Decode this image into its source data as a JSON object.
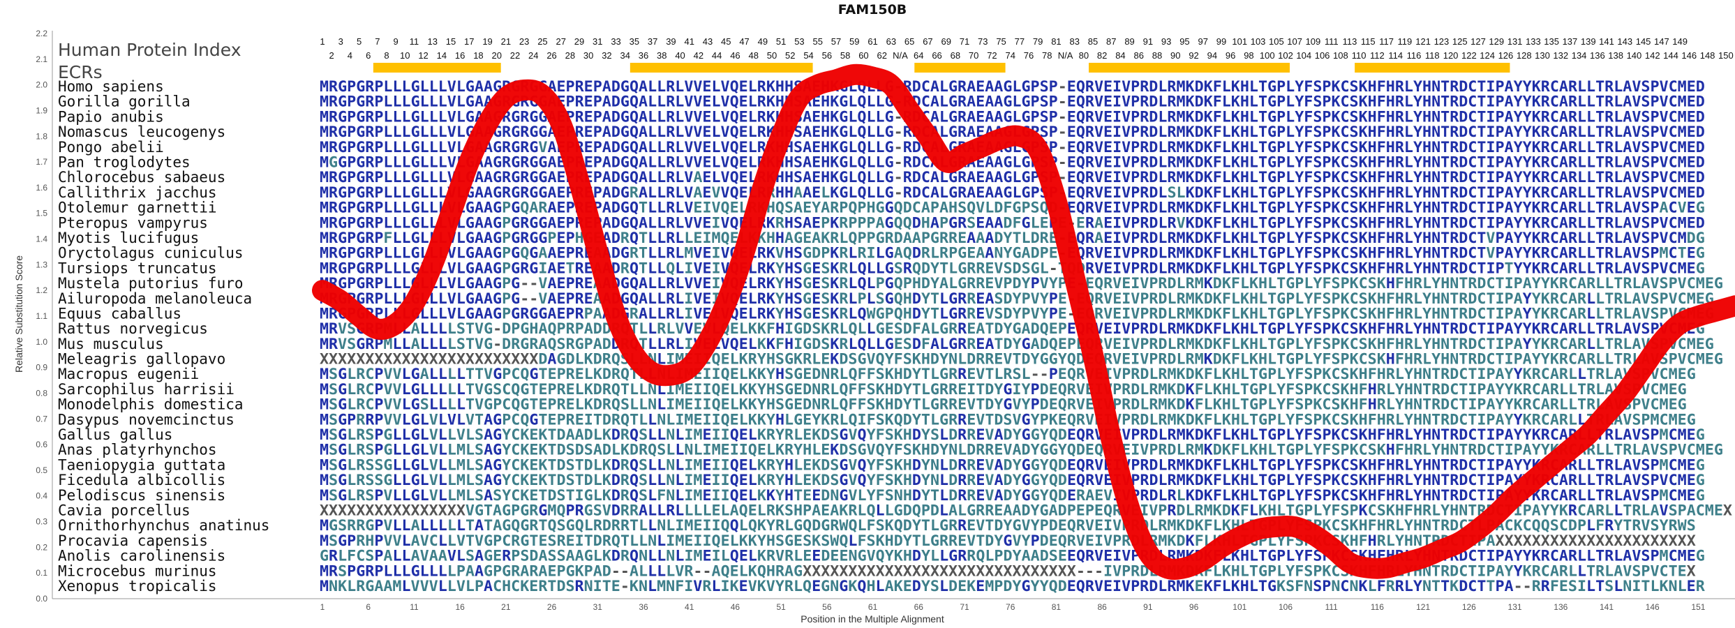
{
  "chart_data": {
    "type": "line",
    "title": "FAM150B",
    "header_label": "Human Protein Index",
    "ecr_label": "ECRs",
    "xlabel": "Position in the Multiple Alignment",
    "ylabel": "Relative Substitution Score",
    "xlim": [
      1,
      155
    ],
    "ylim": [
      0,
      2.2
    ],
    "yticks": [
      "0.0",
      "0.1",
      "0.2",
      "0.3",
      "0.4",
      "0.5",
      "0.6",
      "0.7",
      "0.8",
      "0.9",
      "1.0",
      "1.1",
      "1.2",
      "1.3",
      "1.4",
      "1.5",
      "1.6",
      "1.7",
      "1.8",
      "1.9",
      "2.0",
      "2.1",
      "2.2"
    ],
    "xticks": [
      "1",
      "6",
      "11",
      "16",
      "21",
      "26",
      "31",
      "36",
      "41",
      "46",
      "51",
      "56",
      "61",
      "66",
      "71",
      "76",
      "81",
      "86",
      "91",
      "96",
      "101",
      "106",
      "111",
      "116",
      "121",
      "126",
      "131",
      "136",
      "141",
      "146",
      "151"
    ],
    "protein_index_odd": [
      "1",
      "3",
      "5",
      "7",
      "9",
      "11",
      "13",
      "15",
      "17",
      "19",
      "21",
      "23",
      "25",
      "27",
      "29",
      "31",
      "33",
      "35",
      "37",
      "39",
      "41",
      "43",
      "45",
      "47",
      "49",
      "51",
      "53",
      "55",
      "57",
      "59",
      "61",
      "63",
      "65",
      "67",
      "69",
      "71",
      "73",
      "75",
      "77",
      "79",
      "81",
      "83",
      "85",
      "87",
      "89",
      "91",
      "93",
      "95",
      "97",
      "99",
      "101",
      "103",
      "105",
      "107",
      "109",
      "111",
      "113",
      "115",
      "117",
      "119",
      "121",
      "123",
      "125",
      "127",
      "129",
      "131",
      "133",
      "135",
      "137",
      "139",
      "141",
      "143",
      "145",
      "147",
      "149"
    ],
    "protein_index_even": [
      "2",
      "4",
      "6",
      "8",
      "10",
      "12",
      "14",
      "16",
      "18",
      "20",
      "22",
      "24",
      "26",
      "28",
      "30",
      "32",
      "34",
      "36",
      "38",
      "40",
      "42",
      "44",
      "46",
      "48",
      "50",
      "52",
      "54",
      "56",
      "58",
      "60",
      "62",
      "N/A",
      "64",
      "66",
      "68",
      "70",
      "72",
      "74",
      "76",
      "78",
      "N/A",
      "80",
      "82",
      "84",
      "86",
      "88",
      "90",
      "92",
      "94",
      "96",
      "98",
      "100",
      "102",
      "104",
      "106",
      "108",
      "110",
      "112",
      "114",
      "116",
      "118",
      "120",
      "122",
      "124",
      "126",
      "128",
      "130",
      "132",
      "134",
      "136",
      "138",
      "140",
      "142",
      "144",
      "146",
      "148",
      "150"
    ],
    "ecr_regions": [
      [
        7,
        20
      ],
      [
        35,
        54
      ],
      [
        66,
        75
      ],
      [
        85,
        106
      ],
      [
        114,
        130
      ]
    ],
    "ecr_color": "#FFC000",
    "line_color": "#EE0000",
    "series": [
      {
        "x": [
          1,
          3,
          5,
          7,
          9,
          11,
          13,
          15,
          17,
          19,
          21,
          23,
          25,
          27,
          29,
          31,
          33,
          35,
          37,
          39,
          41,
          43,
          45,
          47,
          49,
          51,
          53,
          55,
          57,
          59,
          61,
          63,
          65,
          67,
          69,
          71,
          73,
          75,
          77,
          79,
          81,
          83,
          85,
          87,
          89,
          91,
          93,
          95,
          97,
          99,
          101,
          103,
          105,
          107,
          109,
          111,
          113,
          115,
          117,
          119,
          121,
          123,
          125,
          127,
          129,
          131,
          133,
          135,
          137,
          139,
          141,
          143,
          145,
          147,
          149,
          151,
          153,
          155
        ],
        "y": [
          1.2,
          1.16,
          1.1,
          1.05,
          1.07,
          1.15,
          1.3,
          1.5,
          1.7,
          1.85,
          1.95,
          1.98,
          1.96,
          1.85,
          1.62,
          1.35,
          1.1,
          0.95,
          0.88,
          0.87,
          0.9,
          1.0,
          1.15,
          1.35,
          1.6,
          1.8,
          1.95,
          2.0,
          2.02,
          2.04,
          2.03,
          2.0,
          1.9,
          1.8,
          1.7,
          1.73,
          1.76,
          1.79,
          1.8,
          1.75,
          1.55,
          1.25,
          0.95,
          0.62,
          0.35,
          0.18,
          0.12,
          0.12,
          0.15,
          0.2,
          0.24,
          0.27,
          0.28,
          0.28,
          0.25,
          0.2,
          0.14,
          0.12,
          0.12,
          0.14,
          0.16,
          0.19,
          0.22,
          0.27,
          0.33,
          0.4,
          0.46,
          0.52,
          0.58,
          0.64,
          0.72,
          0.8,
          0.9,
          1.0,
          1.07,
          1.1,
          1.12,
          1.14
        ]
      }
    ],
    "grid": false,
    "sequence_alignment": [
      {
        "species": "Homo sapiens",
        "seq": "MRGPGRPLLLGLLLVLGAAGRGRGGAEPREPADGQALLRLVVELVQELRKHHSAEHKGLQLLG-RDCALGRAEAAGLGPSP-EQRVEIVPRDLRMKDKFLKHLTGPLYFSPKCSKHFHRLYHNTRDCTIPAYYKRCARLLTRLAVSPVCMED"
      },
      {
        "species": "Gorilla gorilla",
        "seq": "MRGPGRPLLLGLLLVLGAAGRGRGGAEPREPADGQALLRLVVELVQELRKHHSAEHKGLQLLG-RDCALGRAEAAGLGPSP-EQRVEIVPRDLRMKDKFLKHLTGPLYFSPKCSKHFHRLYHNTRDCTIPAYYKRCARLLTRLAVSPVCMED"
      },
      {
        "species": "Papio anubis",
        "seq": "MRGPGRPLLLGLLLVLGAAGRGRGGAEPREPADGQALLRLVVELVQELRKHHSAEHKGLQLLG-RDCALGRAEAAGLGPSP-EQRVEIVPRDLRMKDKFLKHLTGPLYFSPKCSKHFHRLYHNTRDCTIPAYYKRCARLLTRLAVSPVCMED"
      },
      {
        "species": "Nomascus leucogenys",
        "seq": "MRGPGRPLLLGLLLVLGAAGRGRGGAEPREPADGQALLRLVVELVQELRKHHSAEHKGLQLLG-RDCALGRAEAAGLGPSP-EQRVEIVPRDLRMKDKFLKHLTGPLYFSPKCSKHFHRLYHNTRDCTIPAYYKRCARLLTRLAVSPVCMED"
      },
      {
        "species": "Pongo abelii",
        "seq": "MRGPGRPLLLGLLLVLGAAGRGRGVAEPREPADGQALLRLVVELVQELRKHHSAEHKGLQLLG-RDCALGRAEAAGLGPSP-EQRVEIVPRDLRMKDKFLKHLTGPLYFSPKCSKHFHRLYHNTRDCTIPAYYKRCARLLTRLAVSPVCMED"
      },
      {
        "species": "Pan troglodytes",
        "seq": "MGGPGRPLLLGLLLVLGAAGRGRGGAEPREPADGQALLRLVVELVQELRKHHSAEHKGLQLLG-RDCALGRAEAAGLGPSP-EQRVEIVPRDLRMKDKFLKHLTGPLYFSPKCSKHFHRLYHNTRDCTIPAYYKRCARLLTRLAVSPVCMED"
      },
      {
        "species": "Chlorocebus sabaeus",
        "seq": "MRGPGRPLLLGLLLVLGAAGRGRGGAEPREPADGQALLRLVAELVQELRKHHSAEHKGLQLLG-RDCALGRAEAAGLGPSP-EQRVEIVPRDLRMKDKFLKHLTGPLYFSPKCSKHFHRLYHNTRDCTIPAYYKRCARLLTRLAVSPVCMED"
      },
      {
        "species": "Callithrix jacchus",
        "seq": "MRGPGRPLLLGLLLVLGAAGRGRGGAEPREPADGRALLRLVAEVVQELRRHHAAELKGLQLLG-RDCALGRAEAAGLGPSP-EQRVEIVPRDLSLKDKFLKHLTGPLYFSPKCSKHFHRLYHNTRDCTIPAYYKRCARLLTRLAVSPVCMED"
      },
      {
        "species": "Otolemur garnettii",
        "seq": "MRGPGRPLLLGLLLVLGAAGPGQARAEPREPADGQTLLRLVEIVQELRKHQSAEYARPQPHGGQDCAPAHSQVLDFGPSQD-EQRVEIVPRDLRMKDKFLKHLTGPLYFSPKCSKHFHRLYHNTRDCTIPAYYKRCARLLTRLAVSPACVEG"
      },
      {
        "species": "Pteropus vampyrus",
        "seq": "MRGPGRPLLLGLLLVLGAAGPGRGGAEPREPADGQALLRLVVEIVQELRKRHSAEPKRPPPAGQQDHAPGRSEAADFGLEPE-ERAEIVPRDLRVKDKFLKHLTGPLYFSPKCSKHFHRLYHNTRDCTIPAYYKRCARLLTRLAVSPVCMED"
      },
      {
        "species": "Myotis lucifugus",
        "seq": "MRGPGRPFLLGLLLVLGAAGPGRGGPEPHGEADRQTLLRLLEIMQELKKHHAGEAKRLQPPGRDAAPGRREAAADYTLDRE-EQRAEIVPRDLRMKDKFLKHLTGPLYFSPKCSKHFHRLYHNTRDCTVPAYYKRCARLLTRLAVSPVCMDG"
      },
      {
        "species": "Oryctolagus cuniculus",
        "seq": "MRGPGRPLLLGLLLVLGAAGPGQGAAEPREAADGRTLLRLMVEIVQELRKVHSGDPKRLRILGAQDRLRPGEAANYGADPE-EQRVEIVPRDLRMKDKFLKHLTGPLYFSPKCSKHFHRLYHNTRDCTVPAYYKRCARLLTRLAVSPMCTEG"
      },
      {
        "species": "Tursiops truncatus",
        "seq": "MRGPGRPLLLGLLLVLGAAGPGRGIAETREAADRQTLLQLIVEIVQELRKYHSGESKRLQLLGSRQDYTLGRREVSDSGL-TQDRVEIVPRDLRMKDKFLKHLTGPLYFSPKCSKHFHRLYHNTRDCTIPTYYKRCARLLTRLAVSPVCMEG"
      },
      {
        "species": "Mustela putorius furo",
        "seq": "MRGPGRPLLLGLLLVLGAAGPG--VAEPREAADGQALLRLVVEIVQELRKYHSGESKRLQLPGQPHDYALGRREVPDYPVYPE-EQRVEIVPRDLRMKDKFLKHLTGPLYFSPKCSKHFHRLYHNTRDCTIPAYYKRCARLLTRLAVSPVCMEG"
      },
      {
        "species": "Ailuropoda melanoleuca",
        "seq": "MRGPGRPLLLGLLLVLGAAGPG--VAEPREAADGQALLRLIVEIVQELRKYHSGESKRLPLSGQHDYTLGRREASDYPVYPE-EQRVEIVPRDLRMKDKFLKHLTGPLYFSPKCSKHFHRLYHNTRDCTIPAYYKRCARLLTRLAVSPVCMEG"
      },
      {
        "species": "Equus caballus",
        "seq": "MRGPGRPLLLGLLLVLGAAGPGRGGAEPRPAADGRALLRLIVEIVQELRKYHSGESKRLQWGPQHDYTLGRREVSDYPVYPE-EQRVEIVPRDLRMKDKFLKHLTGPLYFSPKCSKHFHRLYHNTRDCTIPAYYKRCARLLTRLAVSPVCMEG"
      },
      {
        "species": "Rattus norvegicus",
        "seq": "MRVSGRPMLLALLLLSTVG-DPGHAQPRPADDRQTLLRLVVEVLQELKKFHIGDSKRLQLLGESDFALGRREATDYGADQEPEQRVEIVPRDLRMKDKFLKHLTGPLYFSPKCSKHFHRLYHNTRDCTIPAYYKRCARLLTRLAVSPVCMEG"
      },
      {
        "species": "Mus musculus",
        "seq": "MRVSGRPMLLALLLLSTVG-DRGRAQSRGPADDRQTLLRLIVELVQELKKFHIGDSKRLQLLGESDFALGRREATDYGADQEPEQRVEIVPRDLRMKDKFLKHLTGPLYFSPKCSKHFHRLYHNTRDCTIPAYYKRCARLLTRLAVSPVCMEG"
      },
      {
        "species": "Meleagris gallopavo",
        "seq": "XXXXXXXXXXXXXXXXXXXXXXXXDAGDLKDRQSLLNLIMEIIQELKRYHSGKRLEKDSGVQYFSKHDYNLDRREVTDYGGYQDEQRVEIVPRDLRMKDKFLKHLTGPLYFSPKCSKHFHRLYHNTRDCTIPAYYKRCARLLTRLAVSPVCMEG"
      },
      {
        "species": "Macropus eugenii",
        "seq": "MSGLRCPVVLGALLLLTTVGPCQGTEPRELKDRQTLLNLIMEIIQELKKYHSGEDNRLQFFSKHDYTLGRREVTLRSL--PEQRVEIVPRDLRMKDKFLKHLTGPLYFSPKCSKHFHRLYHNTRDCTIPAYYKRCARLLTRLAVSPVCMEG"
      },
      {
        "species": "Sarcophilus harrisii",
        "seq": "MSGLRCPVVLGLLLLLTVGSCQGTEPRELKDRQTLLNLIMEIIQELKKYHSGEDNRLQFFSKHDYTLGRREITDYGIYPDEQRVEIVPRDLRMKDKFLKHLTGPLYFSPKCSKHFHRLYHNTRDCTIPAYYKRCARLLTRLAVSPVCMEG"
      },
      {
        "species": "Monodelphis domestica",
        "seq": "MSGLRCPVVLGSLLLLTVGPCQGTEPRELKDRQSLLNLIMEIIQELKKYHSGEDNRLQFFSKHDYTLGRREVTDYGVYPDEQRVEIVPRDLRMKDKFLKHLTGPLYFSPKCSKHFHRLYHNTRDCTIPAYYKRCARLLTRLAVSPVCMEG"
      },
      {
        "species": "Dasypus novemcinctus",
        "seq": "MSGPRRPVVLGLVLVLVTAGPCQGTEPREITDRQTLLNLIMEIIQELKKYHLGEYKRLQIFSKQDYTLGRREVTDSVGYPKEQRVEIVPRDLRMKDKFLKHLTGPLYFSPKCSKHFHRLYHNTRDCTIPAYYKRCARLLTRLAVSPMCMEG"
      },
      {
        "species": "Gallus gallus",
        "seq": "MSGLRSPGLLGLVLLVLSAGYCKEKTDAADLKDRQSLLNLIMEIIQELKRYRLEKDSGVQYFSKHDYSLDRREVADYGGYQDEQRVEIVPRDLRMKDKFLKHLTGPLYFSPKCSKHFHRLYHNTRDCTIPAYYKRCARLLTRLAVSPMCMEG"
      },
      {
        "species": "Anas platyrhynchos",
        "seq": "MSGLRSPGLLGLVLLMLSAGYCKEKTDSDSADLKDRQSLLNLIMEIIQELKRYHLEKDSGVQYFSKHDYNLDRREVADYGGYQDEQRVEIVPRDLRMKDKFLKHLTGPLYFSPKCSKHFHRLYHNTRDCTIPAYYKRCARLLTRLAVSPVCMEG"
      },
      {
        "species": "Taeniopygia guttata",
        "seq": "MSGLRSSGLLGLVLLMLSAGYCKEKTDSTDLKDRQSLLNLIMEIIQELKRYHLEKDSGVQYFSKHDYNLDRREVADYGGYQDEQRVEIVPRDLRMKDKFLKHLTGPLYFSPKCSKHFHRLYHNTRDCTIPAYYKRCARLLTRLAVSPMCMEG"
      },
      {
        "species": "Ficedula albicollis",
        "seq": "MSGLRSSGLLGLVLLMLSAGYCKEKTDSTDLKDRQSLLNLIMEIIQELKRYHLEKDSGVQYFSKHDYNLDRREVADYGGYQDEQRVEIVPRDLRMKDKFLKHLTGPLYFSPKCSKHFHRLYHNTRDCTIPAYYKRCARLLTRLAVSPVCMEG"
      },
      {
        "species": "Pelodiscus sinensis",
        "seq": "MSGLRSPVLLGLVLLMLSASYCKETDSTIGLKDRQSLFNLIMEIIQELKKYHTEEDNGVLYFSNHDYTLDRREVADYGGYQDERAEVIVPRDLRLKDKFLKHLTGPLYFSPKCSKHFHRLYHNTRDCTIPAYYKRCARLLTRLAVSPMCMEG"
      },
      {
        "species": "Cavia porcellus",
        "seq": "XXXXXXXXXXXXXXXXVGTAGPGRGMQPRGSVDRRALLRLLLLELAQELRKSHPAEAKRLQLLGDQPDLALGRREAADYGADPEPEQRVEIVPRDLRMKDKFLKHLTGPLYFSPKCSKHFHRLYHNTRDCTIPAYYKRCARLLTRLAVSPACMEX"
      },
      {
        "species": "Ornithorhynchus anatinus",
        "seq": "MGSRRGPVLLALLLLLTATAGQGRTQSGQLRDRRTLLNLIMEIIQQLQKYRLGQDGRWQLFSKQDYTLGRREVTDYGVYPDEQRVEIVPRDLRMKDKFLKHLTGPLYFSPKCSKHFHRLYHNTRDCTLPACKCQQSCDPLFRYTRVSYRWS"
      },
      {
        "species": "Procavia capensis",
        "seq": "MSGPRHPVVLAVCLLVTVGPCRGTESREITDRQTLLNLIMEIIQELKKYHSGESKSWQLFSKHDYTLGRREVTDYGVYPDEQRVEIVPRDLRMKDKFLKHLTGPLYFSPKCSKHFHRLYHNTRDCTIPAXXXXXXXXXXXXXXXXXXXXXX"
      },
      {
        "species": "Anolis carolinensis",
        "seq": "GRLFCSPALLAVAAVLSAGERPSDASSAAGLKDRQNLLNLIMEILQELKRVRLEEDEENGVQYKHDYLLGRRQLPDYAADSEEQRVEIVPRDLRMKDKFLKHLTGPLYFSPKCSKHFHRLYHNTRDCTIPAYYKRCARLLTRLAVSPMCMEG"
      },
      {
        "species": "Microcebus murinus",
        "seq": "MRSPGRPLLLGLLLLPAAGPGRARAEPGKPAD--ALLLLVR--AQELKQHRAGXXXXXXXXXXXXXXXXXXXXXXXXXXXXXX---IVPRDLRMKDKFLKHLTGPLYFSPKCSKHFHRLYHNTRDCTIPAYYKRCARLLTRLAVSPVCTEX"
      },
      {
        "species": "Xenopus tropicalis",
        "seq": "MNKLRGAAMLVVVLLVLPACHCKERTDSRNITE-KNLMNFIVRLIKEVKVYRLQEGNGKQHLAKEDYSLDEKEMPDYGYYQDEQRVEIVPRDLRMKEKFLKHLTGKSFNSPNCNKLFRRLYNTTKDCTTPA--RRFESILTSLNITLKNLER"
      }
    ],
    "sequence_colors": {
      "conserved": "#1F2FA8",
      "variable": "#3E7F8A",
      "gap": "#555555"
    }
  }
}
